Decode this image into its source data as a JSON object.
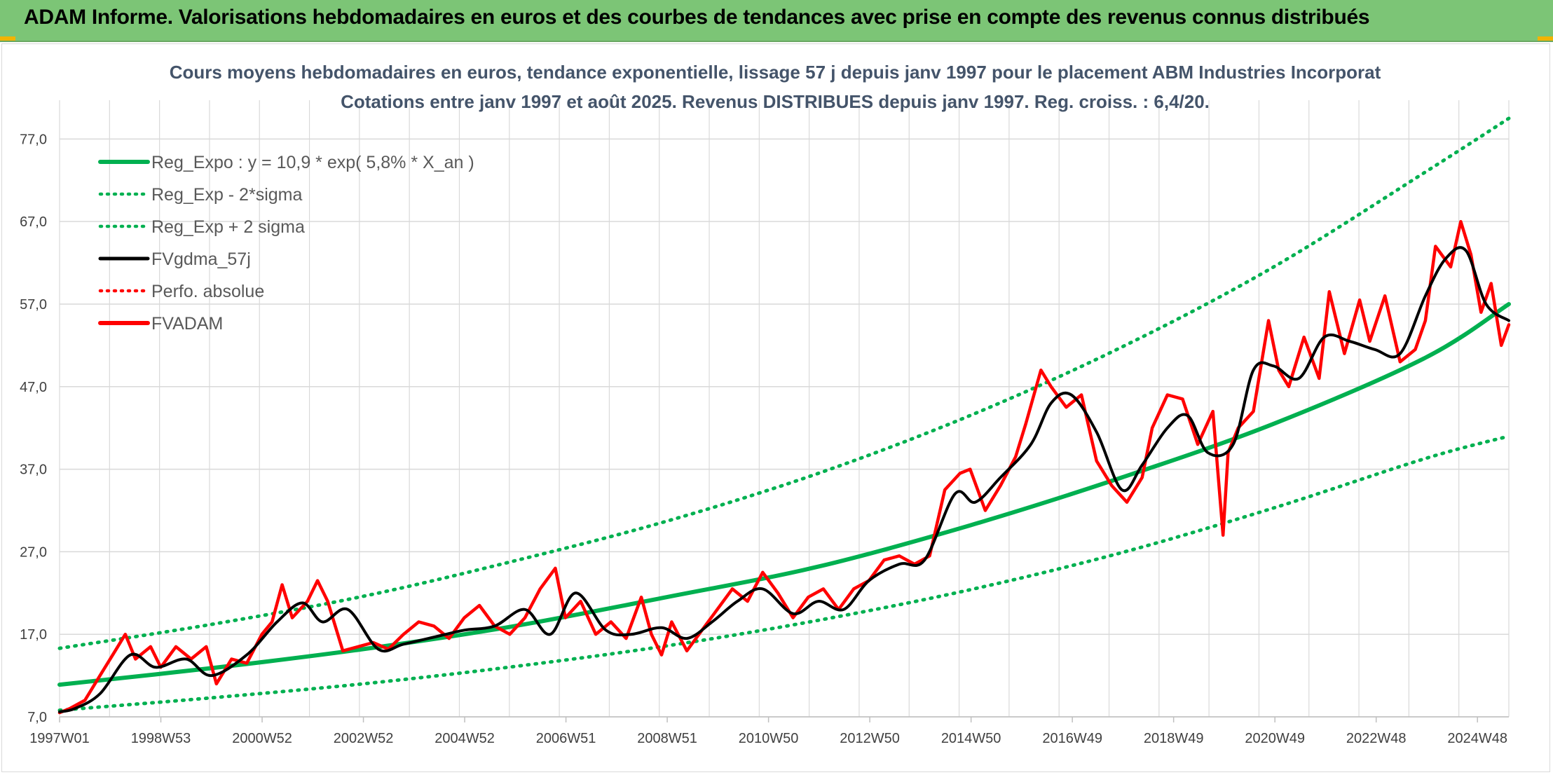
{
  "banner": {
    "title": "ADAM Informe. Valorisations hebdomadaires en euros et des courbes de tendances avec prise en compte des revenus connus distribués"
  },
  "colors": {
    "banner_bg": "#7cc576",
    "regression": "#00b050",
    "smoothed": "#000000",
    "price": "#ff0000",
    "perfo": "#ff0000",
    "grid": "#d9d9d9",
    "title_text": "#44546a"
  },
  "chart_data": {
    "type": "line",
    "title": "Cours moyens hebdomadaires en euros, tendance exponentielle, lissage 57 j depuis janv 1997 pour le placement ABM Industries Incorporat",
    "subtitle": "Cotations entre janv 1997 et août 2025. Revenus DISTRIBUES depuis janv 1997. Reg. croiss. : 6,4/20.",
    "xlabel": "",
    "ylabel": "",
    "ylim": [
      7.0,
      80.0
    ],
    "grid": true,
    "legend_position": "top-left",
    "y_ticks": [
      "7,0",
      "17,0",
      "27,0",
      "37,0",
      "47,0",
      "57,0",
      "67,0",
      "77,0"
    ],
    "y_tick_values": [
      7,
      17,
      27,
      37,
      47,
      57,
      67,
      77
    ],
    "x_ticks": [
      "1997W01",
      "1998W53",
      "2000W52",
      "2002W52",
      "2004W52",
      "2006W51",
      "2008W51",
      "2010W50",
      "2012W50",
      "2014W50",
      "2016W49",
      "2018W49",
      "2020W49",
      "2022W48",
      "2024W48"
    ],
    "x_range_years": [
      1997.0,
      2025.65
    ],
    "legend": [
      {
        "label": "Reg_Expo : y = 10,9 * exp( 5,8% *  X_an )",
        "style": "solid-thick",
        "color": "#00b050"
      },
      {
        "label": "Reg_Exp - 2*sigma",
        "style": "dotted",
        "color": "#00b050"
      },
      {
        "label": "Reg_Exp + 2 sigma",
        "style": "dotted",
        "color": "#00b050"
      },
      {
        "label": "FVgdma_57j",
        "style": "solid",
        "color": "#000000"
      },
      {
        "label": "Perfo. absolue",
        "style": "dotted",
        "color": "#ff0000"
      },
      {
        "label": "FVADAM",
        "style": "solid-thick",
        "color": "#ff0000"
      }
    ],
    "series": [
      {
        "name": "Reg_Expo : y = 10,9 * exp( 5,8% *  X_an )",
        "kind": "regression",
        "x": [
          1997.0,
          2000.0,
          2003.0,
          2006.0,
          2009.0,
          2012.0,
          2015.0,
          2018.0,
          2021.0,
          2024.0,
          2025.65
        ],
        "values": [
          10.9,
          12.9,
          15.2,
          18.0,
          21.5,
          25.2,
          30.2,
          36.0,
          42.5,
          50.5,
          57.0
        ]
      },
      {
        "name": "Reg_Exp - 2*sigma",
        "kind": "lower",
        "x": [
          1997.0,
          2000.0,
          2003.0,
          2006.0,
          2009.0,
          2012.0,
          2015.0,
          2018.0,
          2021.0,
          2024.0,
          2025.65
        ],
        "values": [
          7.8,
          9.3,
          11.0,
          13.1,
          15.6,
          18.7,
          22.4,
          26.9,
          32.3,
          38.3,
          41.0
        ]
      },
      {
        "name": "Reg_Exp + 2 sigma",
        "kind": "upper",
        "x": [
          1997.0,
          2000.0,
          2003.0,
          2006.0,
          2009.0,
          2012.0,
          2015.0,
          2018.0,
          2021.0,
          2024.0,
          2025.65
        ],
        "values": [
          15.3,
          18.2,
          21.6,
          25.9,
          30.7,
          36.5,
          43.5,
          51.8,
          61.5,
          73.0,
          79.5
        ]
      },
      {
        "name": "FVgdma_57j",
        "kind": "smoothed",
        "x": [
          1997.0,
          1997.3,
          1997.8,
          1998.4,
          1998.9,
          1999.5,
          2000.0,
          2000.7,
          2001.3,
          2001.8,
          2002.2,
          2002.7,
          2003.3,
          2003.8,
          2004.5,
          2005.0,
          2005.6,
          2006.2,
          2006.7,
          2007.2,
          2007.8,
          2008.3,
          2008.9,
          2009.4,
          2009.9,
          2010.4,
          2010.9,
          2011.5,
          2012.0,
          2012.5,
          2013.0,
          2013.6,
          2014.1,
          2014.7,
          2015.1,
          2015.6,
          2016.2,
          2016.6,
          2017.0,
          2017.5,
          2018.0,
          2018.4,
          2018.9,
          2019.3,
          2019.7,
          2020.2,
          2020.6,
          2021.0,
          2021.5,
          2022.0,
          2022.5,
          2023.0,
          2023.5,
          2024.0,
          2024.4,
          2024.8,
          2025.2,
          2025.65
        ],
        "values": [
          7.6,
          8.0,
          9.8,
          14.5,
          13.0,
          14.0,
          12.0,
          14.5,
          18.5,
          20.8,
          18.5,
          20.0,
          15.2,
          15.8,
          16.8,
          17.5,
          18.0,
          20.0,
          17.0,
          22.0,
          17.5,
          17.0,
          17.8,
          16.5,
          18.5,
          21.0,
          22.5,
          19.5,
          21.0,
          20.0,
          23.5,
          25.5,
          26.0,
          34.0,
          33.0,
          36.0,
          40.0,
          45.0,
          46.0,
          41.5,
          34.5,
          37.5,
          42.0,
          43.5,
          39.0,
          40.0,
          49.0,
          49.5,
          48.0,
          53.0,
          52.5,
          51.5,
          51.0,
          58.0,
          62.5,
          63.5,
          57.0,
          55.0
        ]
      },
      {
        "name": "FVADAM",
        "kind": "price",
        "x": [
          1997.0,
          1997.2,
          1997.5,
          1997.8,
          1998.1,
          1998.3,
          1998.5,
          1998.8,
          1999.0,
          1999.3,
          1999.6,
          1999.9,
          2000.1,
          2000.4,
          2000.7,
          2001.0,
          2001.2,
          2001.4,
          2001.6,
          2001.9,
          2002.1,
          2002.3,
          2002.6,
          2002.9,
          2003.2,
          2003.5,
          2003.8,
          2004.1,
          2004.4,
          2004.7,
          2005.0,
          2005.3,
          2005.6,
          2005.9,
          2006.2,
          2006.5,
          2006.8,
          2007.0,
          2007.3,
          2007.6,
          2007.9,
          2008.2,
          2008.5,
          2008.7,
          2008.9,
          2009.1,
          2009.4,
          2009.7,
          2010.0,
          2010.3,
          2010.6,
          2010.9,
          2011.2,
          2011.5,
          2011.8,
          2012.1,
          2012.4,
          2012.7,
          2013.0,
          2013.3,
          2013.6,
          2013.9,
          2014.2,
          2014.5,
          2014.8,
          2015.0,
          2015.3,
          2015.6,
          2015.9,
          2016.1,
          2016.4,
          2016.6,
          2016.9,
          2017.2,
          2017.5,
          2017.8,
          2018.1,
          2018.4,
          2018.6,
          2018.9,
          2019.2,
          2019.5,
          2019.8,
          2020.0,
          2020.1,
          2020.3,
          2020.6,
          2020.9,
          2021.1,
          2021.3,
          2021.6,
          2021.9,
          2022.1,
          2022.4,
          2022.7,
          2022.9,
          2023.2,
          2023.5,
          2023.8,
          2024.0,
          2024.2,
          2024.5,
          2024.7,
          2024.9,
          2025.1,
          2025.3,
          2025.5,
          2025.65
        ],
        "values": [
          7.5,
          8.0,
          9.0,
          12.0,
          15.0,
          17.0,
          14.0,
          15.5,
          13.0,
          15.5,
          14.0,
          15.5,
          11.0,
          14.0,
          13.5,
          17.0,
          18.5,
          23.0,
          19.0,
          21.0,
          23.5,
          21.0,
          15.0,
          15.5,
          16.0,
          15.2,
          17.0,
          18.5,
          18.0,
          16.5,
          19.0,
          20.5,
          18.0,
          17.0,
          19.0,
          22.5,
          25.0,
          19.0,
          21.0,
          17.0,
          18.5,
          16.5,
          21.5,
          17.0,
          14.5,
          18.5,
          15.0,
          17.5,
          20.0,
          22.5,
          21.0,
          24.5,
          22.0,
          19.0,
          21.5,
          22.5,
          20.0,
          22.5,
          23.5,
          26.0,
          26.5,
          25.5,
          26.5,
          34.5,
          36.5,
          37.0,
          32.0,
          35.0,
          38.5,
          42.5,
          49.0,
          47.0,
          44.5,
          46.0,
          38.0,
          35.0,
          33.0,
          36.0,
          42.0,
          46.0,
          45.5,
          40.0,
          44.0,
          29.0,
          39.0,
          42.0,
          44.0,
          55.0,
          49.0,
          47.0,
          53.0,
          48.0,
          58.5,
          51.0,
          57.5,
          52.5,
          58.0,
          50.0,
          51.5,
          55.0,
          64.0,
          61.5,
          67.0,
          63.0,
          56.0,
          59.5,
          52.0,
          54.5
        ]
      }
    ]
  }
}
